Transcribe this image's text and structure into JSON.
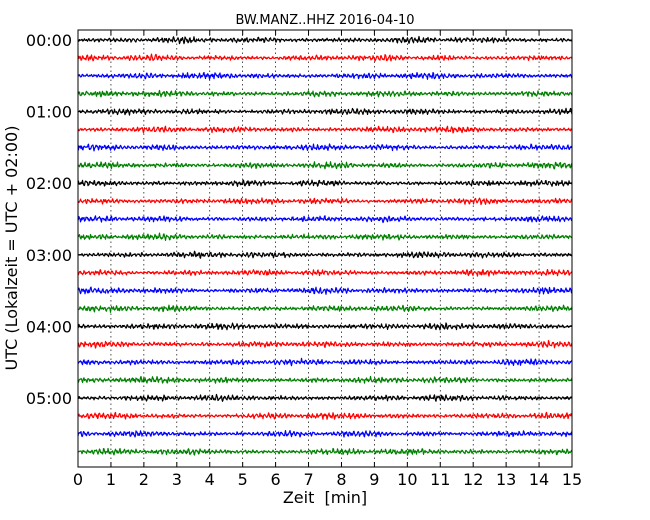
{
  "chart_data": {
    "type": "line",
    "title": "BW.MANZ..HHZ 2016-04-10",
    "xlabel": "Zeit  [min]",
    "ylabel": "UTC (Lokalzeit = UTC + 02:00)",
    "xlim": [
      0,
      15
    ],
    "x_ticks": [
      "0",
      "1",
      "2",
      "3",
      "4",
      "5",
      "6",
      "7",
      "8",
      "9",
      "10",
      "11",
      "12",
      "13",
      "14",
      "15"
    ],
    "y_ticks": [
      "00:00",
      "01:00",
      "02:00",
      "03:00",
      "04:00",
      "05:00"
    ],
    "grid": "vertical dotted lines at each minute",
    "trace_colors": [
      "#000000",
      "#ff0000",
      "#0000ff",
      "#008000"
    ],
    "num_traces": 24,
    "trace_interval_minutes": 15,
    "series": [
      {
        "start": "00:00"
      },
      {
        "start": "00:15"
      },
      {
        "start": "00:30"
      },
      {
        "start": "00:45"
      },
      {
        "start": "01:00"
      },
      {
        "start": "01:15"
      },
      {
        "start": "01:30"
      },
      {
        "start": "01:45"
      },
      {
        "start": "02:00"
      },
      {
        "start": "02:15"
      },
      {
        "start": "02:30"
      },
      {
        "start": "02:45"
      },
      {
        "start": "03:00"
      },
      {
        "start": "03:15"
      },
      {
        "start": "03:30"
      },
      {
        "start": "03:45"
      },
      {
        "start": "04:00"
      },
      {
        "start": "04:15"
      },
      {
        "start": "04:30"
      },
      {
        "start": "04:45"
      },
      {
        "start": "05:00"
      },
      {
        "start": "05:15"
      },
      {
        "start": "05:30"
      },
      {
        "start": "05:45"
      }
    ]
  }
}
